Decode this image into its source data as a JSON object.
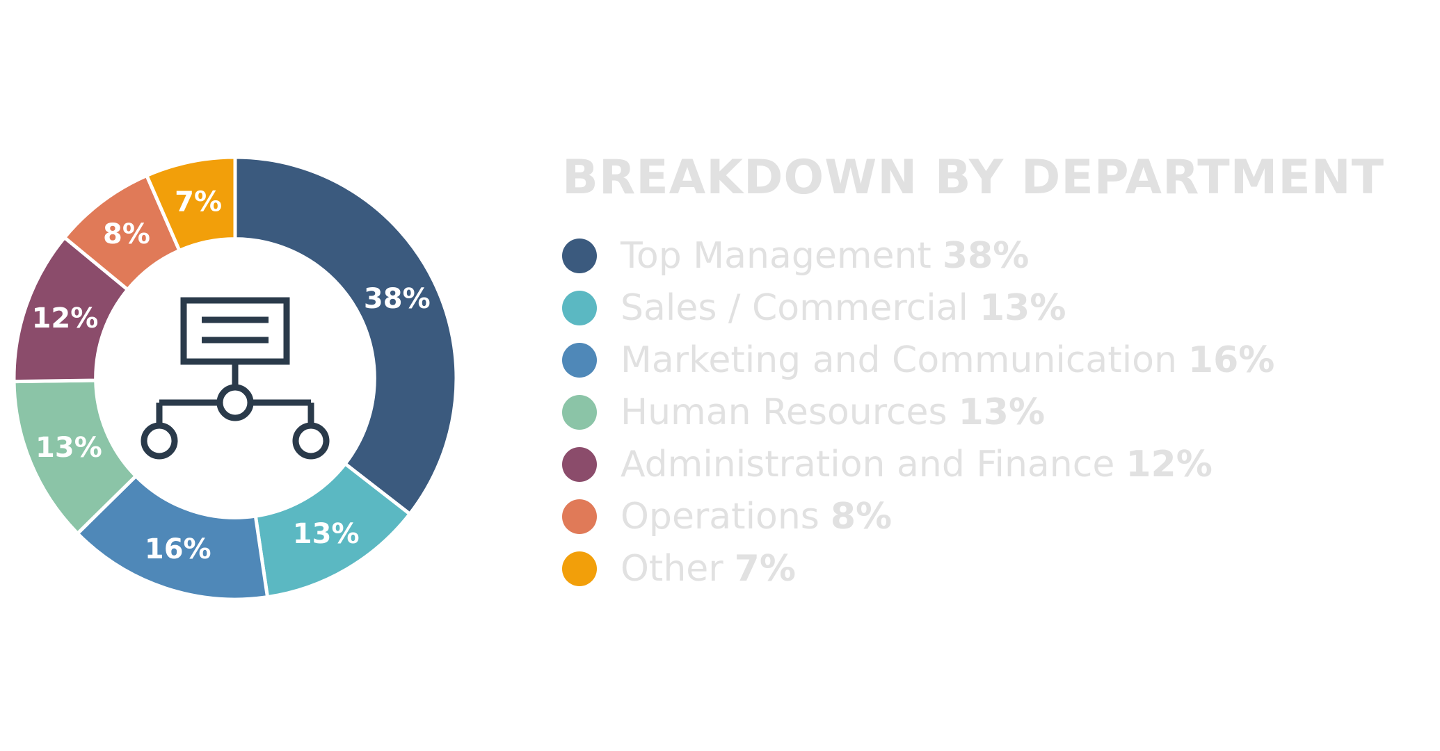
{
  "chart_data": {
    "type": "pie",
    "title": "BREAKDOWN BY DEPARTMENT",
    "categories": [
      "Top Management",
      "Sales / Commercial",
      "Marketing and Communication",
      "Human Resources",
      "Administration and Finance",
      "Operations",
      "Other"
    ],
    "values": [
      38,
      13,
      16,
      13,
      12,
      8,
      7
    ],
    "value_labels": [
      "38%",
      "13%",
      "16%",
      "13%",
      "12%",
      "8%",
      "7%"
    ],
    "colors": [
      "#3b5a7e",
      "#5bb8c2",
      "#4f88b8",
      "#8bc4a7",
      "#8b4c6b",
      "#e07a58",
      "#f29f0a"
    ],
    "inner_radius_ratio": 0.63,
    "start_angle": "top",
    "direction": "clockwise",
    "legend_position": "right",
    "center_icon": "org-chart-icon"
  }
}
